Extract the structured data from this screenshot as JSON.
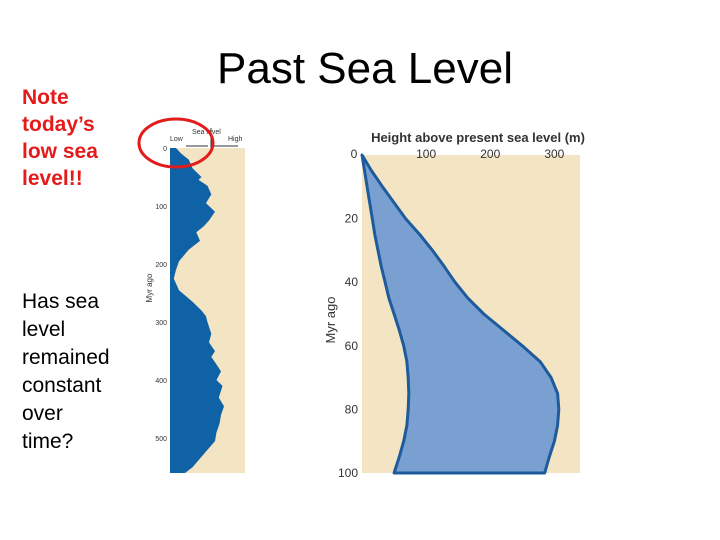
{
  "slide": {
    "title": "Past Sea Level",
    "note": "Note\ntoday’s\nlow sea\nlevel!!",
    "question": "Has sea\nlevel\nremained\nconstant\nover\ntime?"
  },
  "colors": {
    "background_panel": "#f3e4c4",
    "sea_dark": "#0f62a6",
    "sea_light": "#79a0d1",
    "sea_outline": "#1e5b9c",
    "note_text": "#e31b1b",
    "highlight_circle": "#e31b1b"
  },
  "chart_data": [
    {
      "type": "area",
      "title": "",
      "header": {
        "low": "Low",
        "center": "Sea level",
        "high": "High"
      },
      "ylabel": "Myr ago",
      "y_ticks": [
        "0",
        "100",
        "200",
        "300",
        "400",
        "500"
      ],
      "ylim": [
        0,
        560
      ],
      "xlim": [
        0,
        1
      ],
      "x": [
        0,
        10,
        20,
        35,
        50,
        55,
        65,
        80,
        95,
        110,
        125,
        135,
        145,
        160,
        175,
        195,
        210,
        225,
        245,
        265,
        280,
        290,
        300,
        320,
        335,
        350,
        360,
        375,
        385,
        400,
        410,
        430,
        445,
        460,
        475,
        490,
        505,
        520,
        535,
        550,
        560
      ],
      "values": [
        0.08,
        0.15,
        0.25,
        0.3,
        0.42,
        0.38,
        0.5,
        0.55,
        0.48,
        0.6,
        0.52,
        0.45,
        0.35,
        0.4,
        0.25,
        0.12,
        0.08,
        0.05,
        0.12,
        0.3,
        0.42,
        0.48,
        0.5,
        0.55,
        0.52,
        0.6,
        0.55,
        0.63,
        0.68,
        0.62,
        0.7,
        0.65,
        0.72,
        0.68,
        0.66,
        0.62,
        0.6,
        0.5,
        0.4,
        0.3,
        0.2
      ],
      "annotation": "circle around the present-day (0 Myr) sea level marker"
    },
    {
      "type": "area",
      "title": "Height above present sea level (m)",
      "xlabel": "Height above present sea level (m)",
      "ylabel": "Myr ago",
      "x_ticks": [
        "0",
        "100",
        "200",
        "300"
      ],
      "y_ticks": [
        "0",
        "20",
        "40",
        "60",
        "80",
        "100"
      ],
      "xlim": [
        0,
        340
      ],
      "ylim": [
        0,
        100
      ],
      "series": [
        {
          "y": [
            0,
            5,
            10,
            15,
            20,
            25,
            30,
            35,
            40,
            45,
            50,
            55,
            60,
            65,
            70,
            75,
            80,
            85,
            90,
            95,
            100
          ],
          "lower": [
            0,
            4,
            8,
            12,
            16,
            20,
            25,
            30,
            36,
            42,
            50,
            58,
            65,
            70,
            72,
            73,
            72,
            70,
            65,
            58,
            50
          ],
          "upper": [
            0,
            15,
            32,
            50,
            68,
            90,
            110,
            128,
            145,
            165,
            190,
            220,
            250,
            278,
            295,
            305,
            307,
            305,
            300,
            292,
            285
          ]
        }
      ]
    }
  ]
}
